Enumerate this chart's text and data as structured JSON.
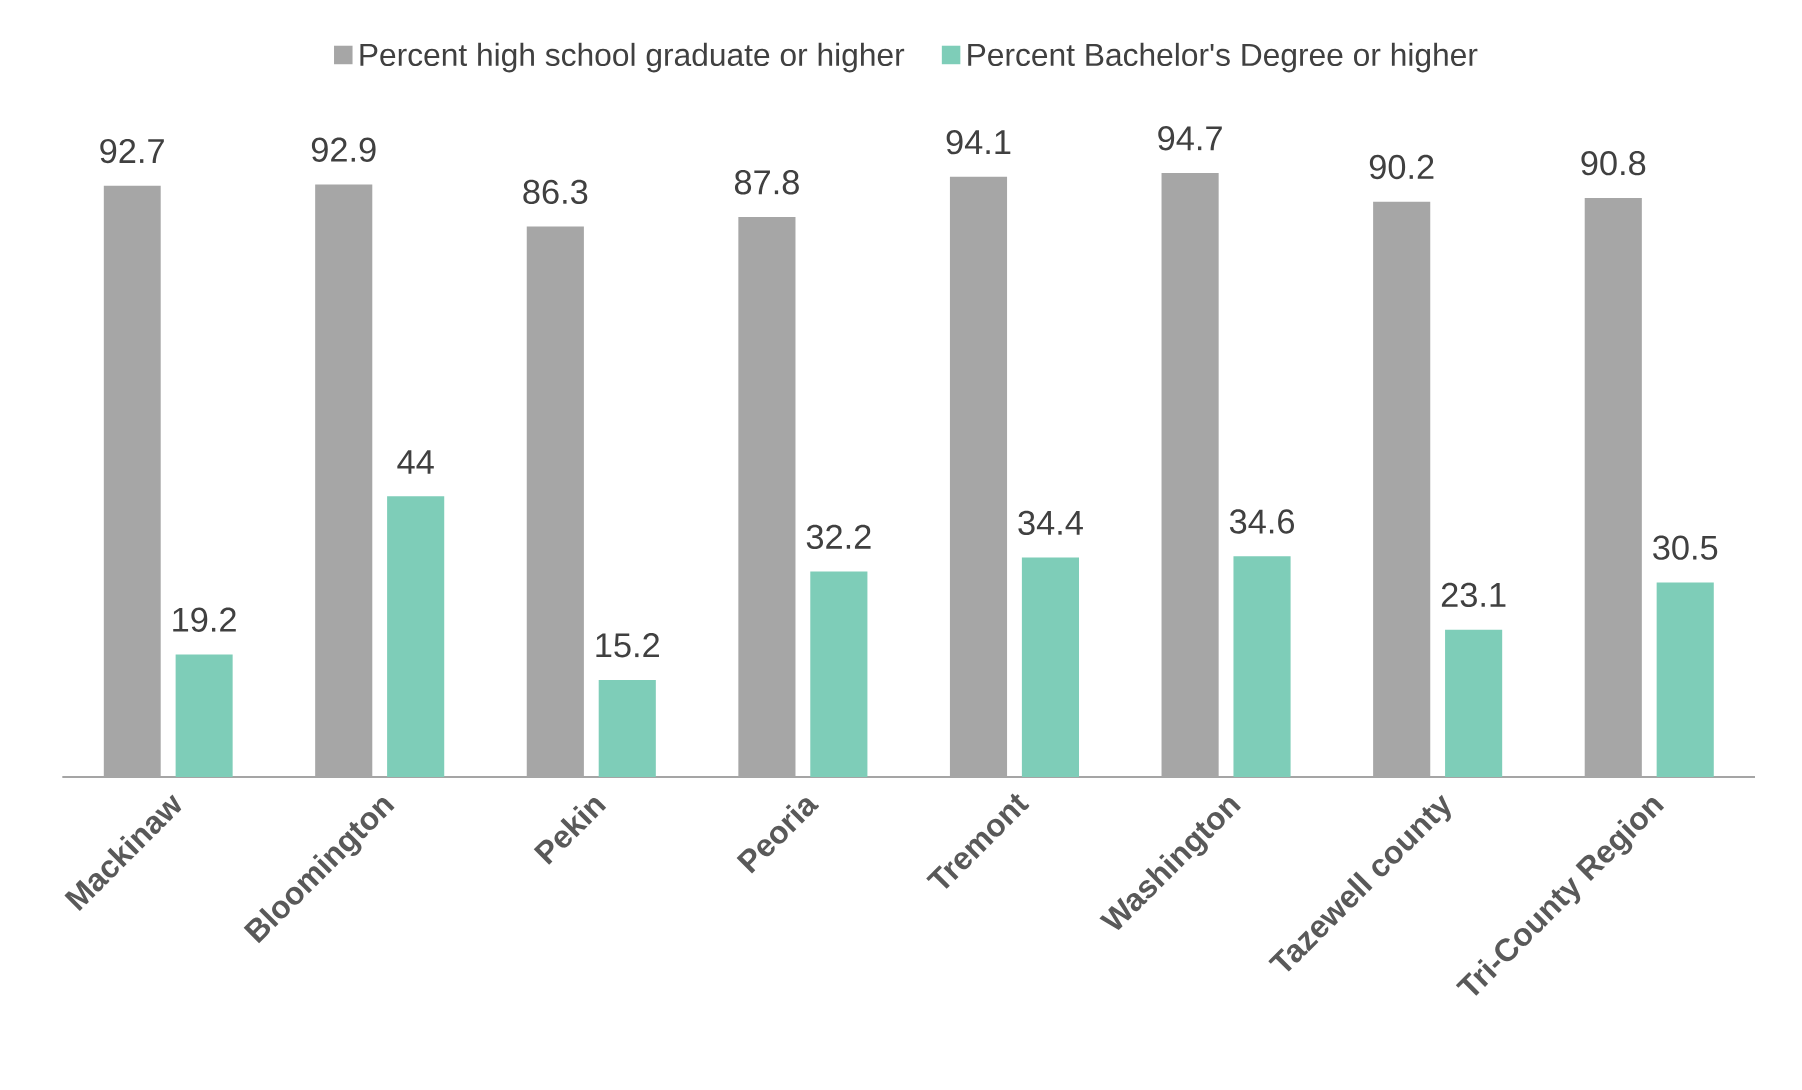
{
  "chart_data": {
    "type": "bar",
    "categories": [
      "Mackinaw",
      "Bloomington",
      "Pekin",
      "Peoria",
      "Tremont",
      "Washington",
      "Tazewell county",
      "Tri-County Region"
    ],
    "series": [
      {
        "name": "Percent high school graduate or higher",
        "color": "#a6a6a6",
        "values": [
          92.7,
          92.9,
          86.3,
          87.8,
          94.1,
          94.7,
          90.2,
          90.8
        ]
      },
      {
        "name": "Percent Bachelor's Degree or higher",
        "color": "#7ecdb8",
        "values": [
          19.2,
          44,
          15.2,
          32.2,
          34.4,
          34.6,
          23.1,
          30.5
        ]
      }
    ],
    "data_labels": true,
    "legend": "top"
  }
}
